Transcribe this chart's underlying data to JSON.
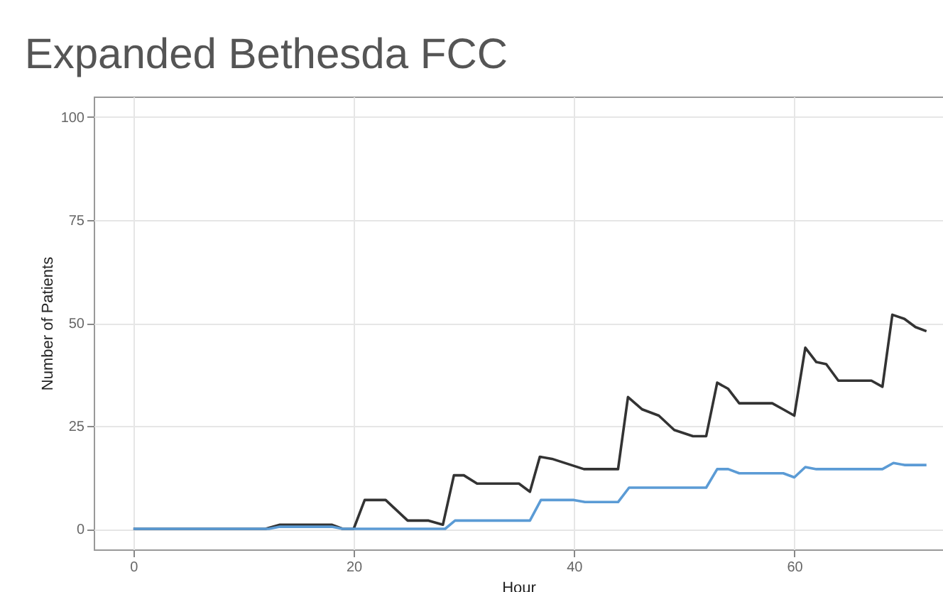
{
  "chart_data": {
    "type": "line",
    "title": "Expanded Bethesda FCC",
    "xlabel": "Hour",
    "ylabel": "Number of Patients",
    "xlim": [
      -3.6,
      73.5
    ],
    "ylim": [
      -5,
      105
    ],
    "xticks": [
      0,
      20,
      40,
      60
    ],
    "yticks": [
      0,
      25,
      50,
      75,
      100
    ],
    "grid": true,
    "marker": "none",
    "line_style": "solid",
    "series": [
      {
        "color": "#333333",
        "x": [
          0,
          12,
          13.3,
          18,
          19,
          20,
          21,
          22.9,
          24.9,
          26.8,
          28.1,
          29.1,
          30,
          31.2,
          35,
          36,
          36.9,
          38,
          40.9,
          44,
          44.9,
          46.2,
          47.7,
          49.1,
          50.8,
          52,
          53,
          54,
          55,
          58,
          59,
          60,
          61,
          62,
          62.9,
          64,
          67,
          68,
          68.9,
          70,
          71,
          72
        ],
        "values": [
          0,
          0,
          1,
          1,
          0,
          0,
          7,
          7,
          2,
          2,
          1,
          13,
          13,
          11,
          11,
          9,
          17.5,
          17,
          14.5,
          14.5,
          32,
          29,
          27.5,
          24,
          22.5,
          22.5,
          35.5,
          34,
          30.5,
          30.5,
          29,
          27.5,
          44,
          40.5,
          40,
          36,
          36,
          34.5,
          52,
          51,
          49,
          48
        ]
      },
      {
        "color": "#5b9bd5",
        "x": [
          0,
          12.3,
          13.3,
          18,
          19,
          28.3,
          29.2,
          36,
          37,
          40,
          41,
          44,
          45,
          52,
          53,
          54,
          55,
          59,
          60,
          61,
          62,
          68,
          69,
          70,
          72
        ],
        "values": [
          0,
          0,
          0.5,
          0.5,
          0,
          0,
          2,
          2,
          7,
          7,
          6.5,
          6.5,
          10,
          10,
          14.5,
          14.5,
          13.5,
          13.5,
          12.5,
          15,
          14.5,
          14.5,
          16,
          15.5,
          15.5
        ]
      }
    ]
  }
}
